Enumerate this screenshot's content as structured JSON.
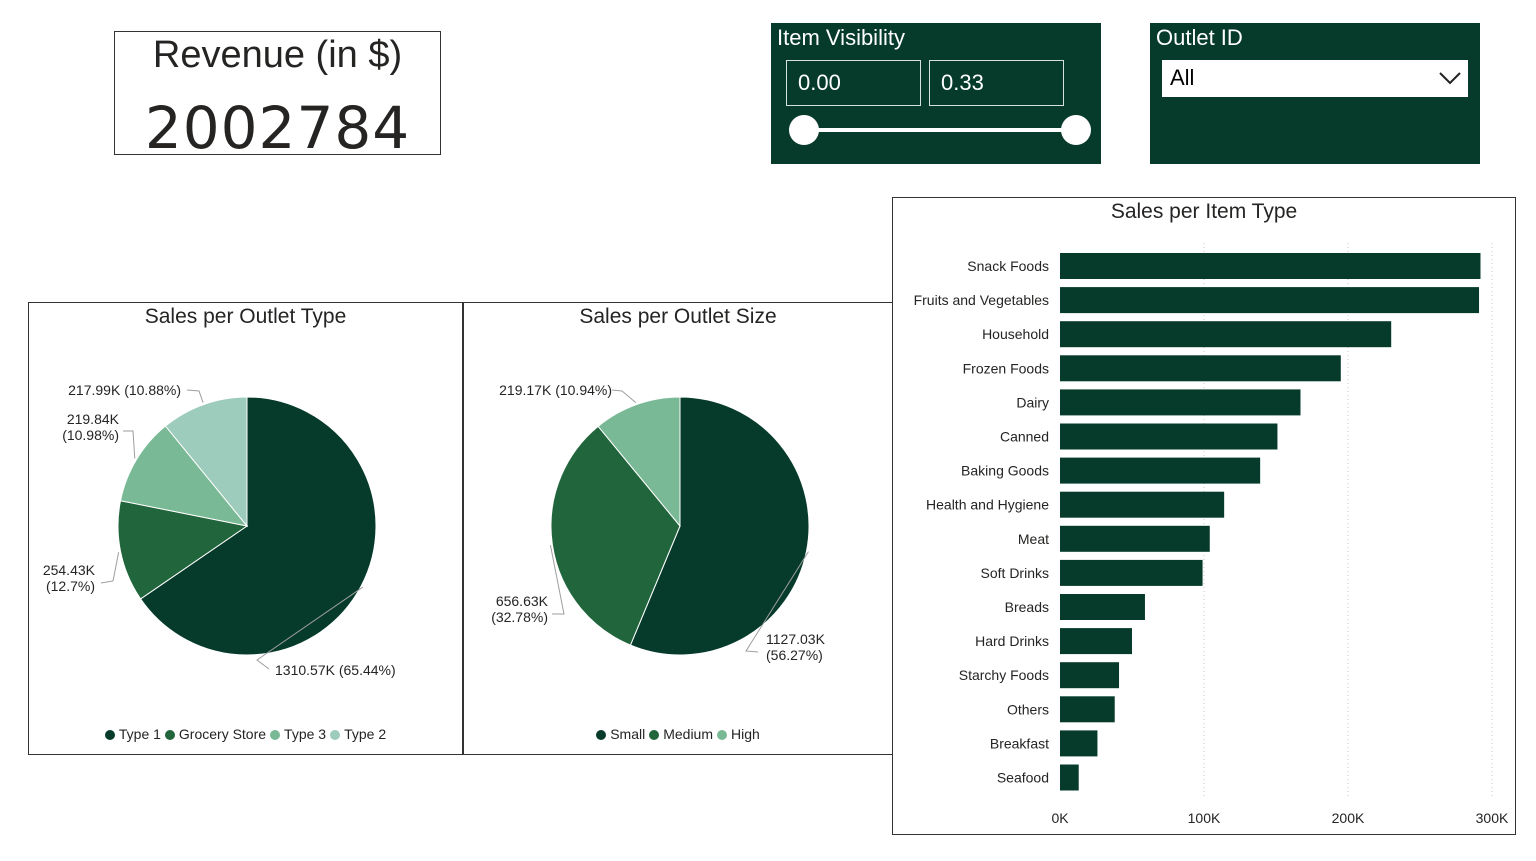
{
  "kpi": {
    "title": "Revenue (in $)",
    "value": "2002784"
  },
  "item_visibility": {
    "title": "Item Visibility",
    "min": "0.00",
    "max": "0.33"
  },
  "outlet_id": {
    "title": "Outlet ID",
    "selected": "All",
    "icon": "chevron-down-icon"
  },
  "colors": {
    "dark": "#063b2c",
    "medium": "#21653c",
    "light": "#7ab995",
    "lightest": "#9dcbbc"
  },
  "chart_data": [
    {
      "type": "pie",
      "title": "Sales per Outlet Type",
      "slices": [
        {
          "name": "Type 1",
          "value": 1310.57,
          "label": "1310.57K (65.44%)",
          "color": "#063b2c"
        },
        {
          "name": "Grocery Store",
          "value": 254.43,
          "label_line1": "254.43K",
          "label_line2": "(12.7%)",
          "color": "#21653c"
        },
        {
          "name": "Type 3",
          "value": 219.84,
          "label_line1": "219.84K",
          "label_line2": "(10.98%)",
          "color": "#7ab995"
        },
        {
          "name": "Type 2",
          "value": 217.99,
          "label": "217.99K (10.88%)",
          "color": "#9dcbbc"
        }
      ],
      "legend": "bottom"
    },
    {
      "type": "pie",
      "title": "Sales per Outlet Size",
      "slices": [
        {
          "name": "Small",
          "value": 1127.03,
          "label_line1": "1127.03K",
          "label_line2": "(56.27%)",
          "color": "#063b2c"
        },
        {
          "name": "Medium",
          "value": 656.63,
          "label_line1": "656.63K",
          "label_line2": "(32.78%)",
          "color": "#21653c"
        },
        {
          "name": "High",
          "value": 219.17,
          "label": "219.17K (10.94%)",
          "color": "#7ab995"
        }
      ],
      "legend": "bottom"
    },
    {
      "type": "bar",
      "orientation": "horizontal",
      "title": "Sales per Item Type",
      "categories": [
        "Snack Foods",
        "Fruits and Vegetables",
        "Household",
        "Frozen Foods",
        "Dairy",
        "Canned",
        "Baking Goods",
        "Health and Hygiene",
        "Meat",
        "Soft Drinks",
        "Breads",
        "Hard Drinks",
        "Starchy Foods",
        "Others",
        "Breakfast",
        "Seafood"
      ],
      "values": [
        292000,
        291000,
        230000,
        195000,
        167000,
        151000,
        139000,
        114000,
        104000,
        99000,
        59000,
        50000,
        41000,
        38000,
        26000,
        13000
      ],
      "xlim": [
        0,
        300000
      ],
      "xticks": [
        0,
        100000,
        200000,
        300000
      ],
      "xtick_labels": [
        "0K",
        "100K",
        "200K",
        "300K"
      ],
      "grid": "vertical-dotted",
      "color": "#063b2c"
    }
  ]
}
